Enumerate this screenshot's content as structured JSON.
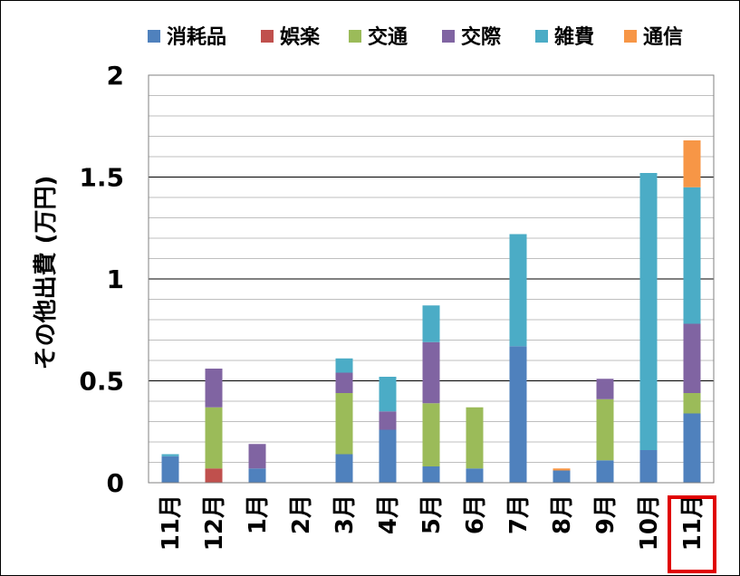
{
  "chart_data": {
    "type": "bar",
    "stacked": true,
    "title": "",
    "xlabel": "",
    "ylabel": "その他出費 (万円)",
    "ylim": [
      0,
      2
    ],
    "yticks": [
      "0",
      "0.5",
      "1",
      "1.5",
      "2"
    ],
    "grid": true,
    "legend_position": "top",
    "categories": [
      "11月",
      "12月",
      "1月",
      "2月",
      "3月",
      "4月",
      "5月",
      "6月",
      "7月",
      "8月",
      "9月",
      "10月",
      "11月"
    ],
    "highlighted_category_index": 12,
    "highlight_color": "#e00000",
    "series": [
      {
        "name": "消耗品",
        "color": "#4f81bd",
        "values": [
          0.13,
          0.0,
          0.07,
          0,
          0.14,
          0.26,
          0.08,
          0.07,
          0.67,
          0.06,
          0.11,
          0.16,
          0.34
        ]
      },
      {
        "name": "娯楽",
        "color": "#c0504d",
        "values": [
          0,
          0.07,
          0,
          0,
          0,
          0,
          0,
          0,
          0,
          0,
          0,
          0,
          0
        ]
      },
      {
        "name": "交通",
        "color": "#9bbb59",
        "values": [
          0,
          0.3,
          0,
          0,
          0.3,
          0,
          0.31,
          0.3,
          0,
          0,
          0.3,
          0,
          0.1
        ]
      },
      {
        "name": "交際",
        "color": "#8064a2",
        "values": [
          0,
          0.19,
          0.12,
          0,
          0.1,
          0.09,
          0.3,
          0,
          0,
          0,
          0.1,
          0,
          0.34
        ]
      },
      {
        "name": "雑費",
        "color": "#4bacc6",
        "values": [
          0.01,
          0,
          0,
          0,
          0.07,
          0.17,
          0.18,
          0,
          0.55,
          0,
          0,
          1.36,
          0.67
        ]
      },
      {
        "name": "通信",
        "color": "#f79646",
        "values": [
          0,
          0,
          0,
          0,
          0,
          0,
          0,
          0,
          0,
          0.01,
          0,
          0,
          0.23
        ]
      }
    ]
  }
}
